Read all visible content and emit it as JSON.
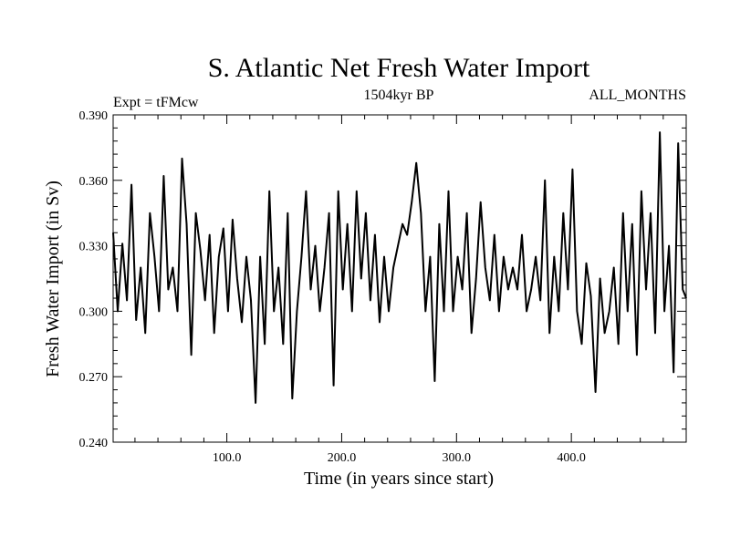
{
  "chart_data": {
    "type": "line",
    "title": "S. Atlantic Net Fresh Water Import",
    "subtitle_left": "Expt = tFMcw",
    "subtitle_center": "1504kyr BP",
    "subtitle_right": "ALL_MONTHS",
    "xlabel": "Time (in years since start)",
    "ylabel": "Fresh Water Import (in Sv)",
    "xlim": [
      1,
      500
    ],
    "ylim": [
      0.24,
      0.39
    ],
    "x_ticks": [
      100,
      200,
      300,
      400
    ],
    "x_tick_labels": [
      "100.0",
      "200.0",
      "300.0",
      "400.0"
    ],
    "y_ticks": [
      0.24,
      0.27,
      0.3,
      0.33,
      0.36,
      0.39
    ],
    "y_tick_labels": [
      "0.240",
      "0.270",
      "0.300",
      "0.330",
      "0.360",
      "0.390"
    ],
    "grid": false,
    "series": [
      {
        "name": "Net Fresh Water Import",
        "x": [
          1,
          5,
          9,
          13,
          17,
          21,
          25,
          29,
          33,
          37,
          41,
          45,
          49,
          53,
          57,
          61,
          65,
          69,
          73,
          77,
          81,
          85,
          89,
          93,
          97,
          101,
          105,
          109,
          113,
          117,
          121,
          125,
          129,
          133,
          137,
          141,
          145,
          149,
          153,
          157,
          161,
          165,
          169,
          173,
          177,
          181,
          185,
          189,
          193,
          197,
          201,
          205,
          209,
          213,
          217,
          221,
          225,
          229,
          233,
          237,
          241,
          245,
          249,
          253,
          257,
          261,
          265,
          269,
          273,
          277,
          281,
          285,
          289,
          293,
          297,
          301,
          305,
          309,
          313,
          317,
          321,
          325,
          329,
          333,
          337,
          341,
          345,
          349,
          353,
          357,
          361,
          365,
          369,
          373,
          377,
          381,
          385,
          389,
          393,
          397,
          401,
          405,
          409,
          413,
          417,
          421,
          425,
          429,
          433,
          437,
          441,
          445,
          449,
          453,
          457,
          461,
          465,
          469,
          473,
          477,
          481,
          485,
          489,
          493,
          497,
          500
        ],
        "values": [
          0.336,
          0.3,
          0.331,
          0.305,
          0.358,
          0.296,
          0.32,
          0.29,
          0.345,
          0.325,
          0.3,
          0.362,
          0.31,
          0.32,
          0.3,
          0.37,
          0.34,
          0.28,
          0.345,
          0.328,
          0.305,
          0.335,
          0.29,
          0.325,
          0.338,
          0.3,
          0.342,
          0.315,
          0.295,
          0.325,
          0.305,
          0.258,
          0.325,
          0.285,
          0.355,
          0.3,
          0.32,
          0.285,
          0.345,
          0.26,
          0.3,
          0.325,
          0.355,
          0.31,
          0.33,
          0.3,
          0.32,
          0.345,
          0.266,
          0.355,
          0.31,
          0.34,
          0.3,
          0.355,
          0.315,
          0.345,
          0.305,
          0.335,
          0.295,
          0.325,
          0.3,
          0.32,
          0.33,
          0.34,
          0.335,
          0.35,
          0.368,
          0.345,
          0.3,
          0.325,
          0.268,
          0.34,
          0.3,
          0.355,
          0.3,
          0.325,
          0.31,
          0.345,
          0.29,
          0.315,
          0.35,
          0.32,
          0.305,
          0.335,
          0.3,
          0.325,
          0.31,
          0.32,
          0.31,
          0.335,
          0.3,
          0.31,
          0.325,
          0.305,
          0.36,
          0.29,
          0.325,
          0.3,
          0.345,
          0.31,
          0.365,
          0.3,
          0.285,
          0.322,
          0.307,
          0.263,
          0.315,
          0.29,
          0.3,
          0.32,
          0.285,
          0.345,
          0.3,
          0.34,
          0.28,
          0.355,
          0.31,
          0.345,
          0.29,
          0.382,
          0.3,
          0.33,
          0.272,
          0.377,
          0.31,
          0.306
        ]
      }
    ]
  }
}
